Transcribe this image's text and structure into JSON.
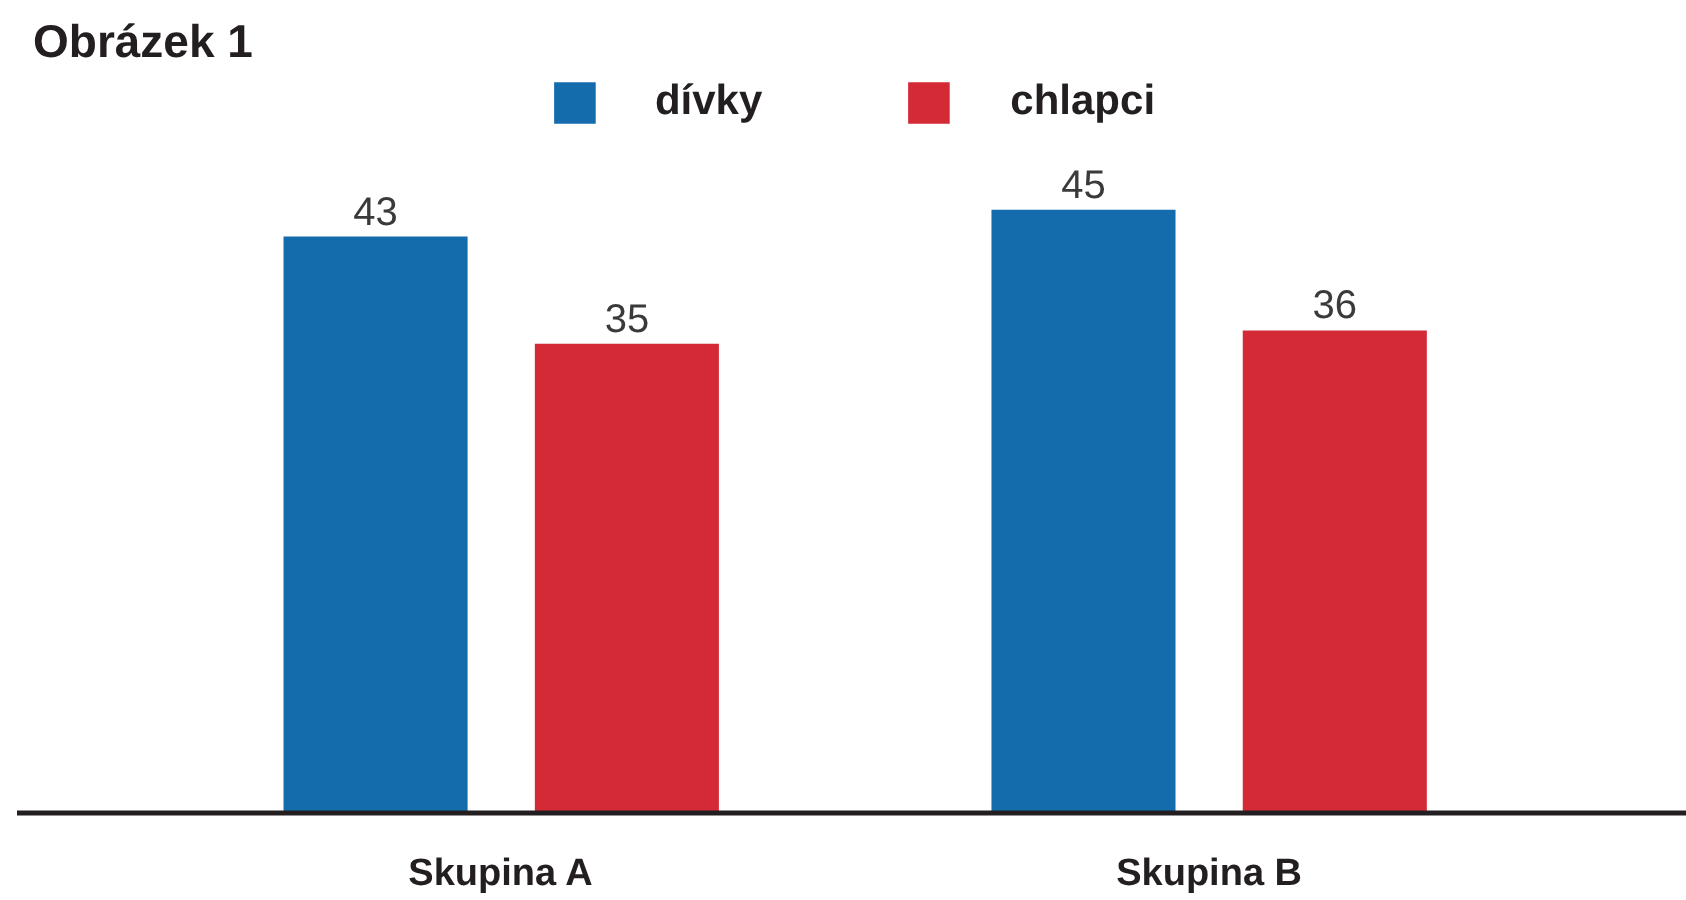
{
  "chart_data": {
    "type": "bar",
    "title": "Obrázek 1",
    "categories": [
      "Skupina A",
      "Skupina B"
    ],
    "series": [
      {
        "name": "dívky",
        "color": "#146cad",
        "values": [
          43,
          45
        ]
      },
      {
        "name": "chlapci",
        "color": "#d42a36",
        "values": [
          35,
          36
        ]
      }
    ],
    "data_labels": true,
    "legend": "top",
    "grid": false
  }
}
